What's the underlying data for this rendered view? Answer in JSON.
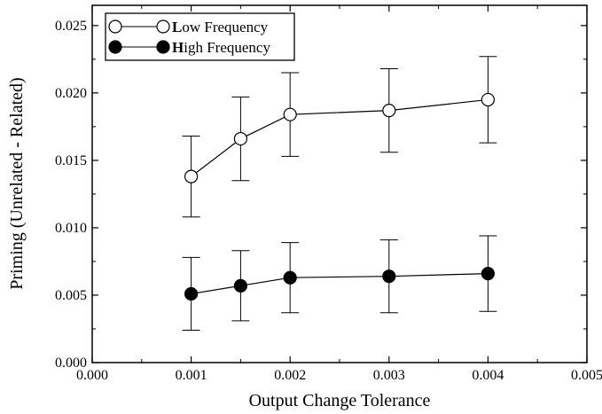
{
  "chart_data": {
    "type": "line",
    "xlabel": "Output Change Tolerance",
    "ylabel": "Priming (Unrelated - Related)",
    "xlim": [
      0.0,
      0.005
    ],
    "ylim": [
      0.0,
      0.0265
    ],
    "x_ticks": [
      0.0,
      0.001,
      0.002,
      0.003,
      0.004,
      0.005
    ],
    "x_tick_labels": [
      "0.000",
      "0.001",
      "0.002",
      "0.003",
      "0.004",
      "0.005"
    ],
    "y_ticks": [
      0.0,
      0.005,
      0.01,
      0.015,
      0.02,
      0.025
    ],
    "y_tick_labels": [
      "0.000",
      "0.005",
      "0.010",
      "0.015",
      "0.020",
      "0.025"
    ],
    "grid": false,
    "legend_position": "top-left",
    "series": [
      {
        "name": "Low Frequency",
        "legend_initial": "L",
        "legend_rest": "ow Frequency",
        "marker": "open-circle",
        "x": [
          0.001,
          0.0015,
          0.002,
          0.003,
          0.004
        ],
        "y": [
          0.0138,
          0.0166,
          0.0184,
          0.0187,
          0.0195
        ],
        "err_low": [
          0.0108,
          0.0135,
          0.0153,
          0.0156,
          0.0163
        ],
        "err_high": [
          0.0168,
          0.0197,
          0.0215,
          0.0218,
          0.0227
        ]
      },
      {
        "name": "High Frequency",
        "legend_initial": "H",
        "legend_rest": "igh Frequency",
        "marker": "filled-circle",
        "x": [
          0.001,
          0.0015,
          0.002,
          0.003,
          0.004
        ],
        "y": [
          0.0051,
          0.0057,
          0.0063,
          0.0064,
          0.0066
        ],
        "err_low": [
          0.0024,
          0.0031,
          0.0037,
          0.0037,
          0.0038
        ],
        "err_high": [
          0.0078,
          0.0083,
          0.0089,
          0.0091,
          0.0094
        ]
      }
    ]
  }
}
